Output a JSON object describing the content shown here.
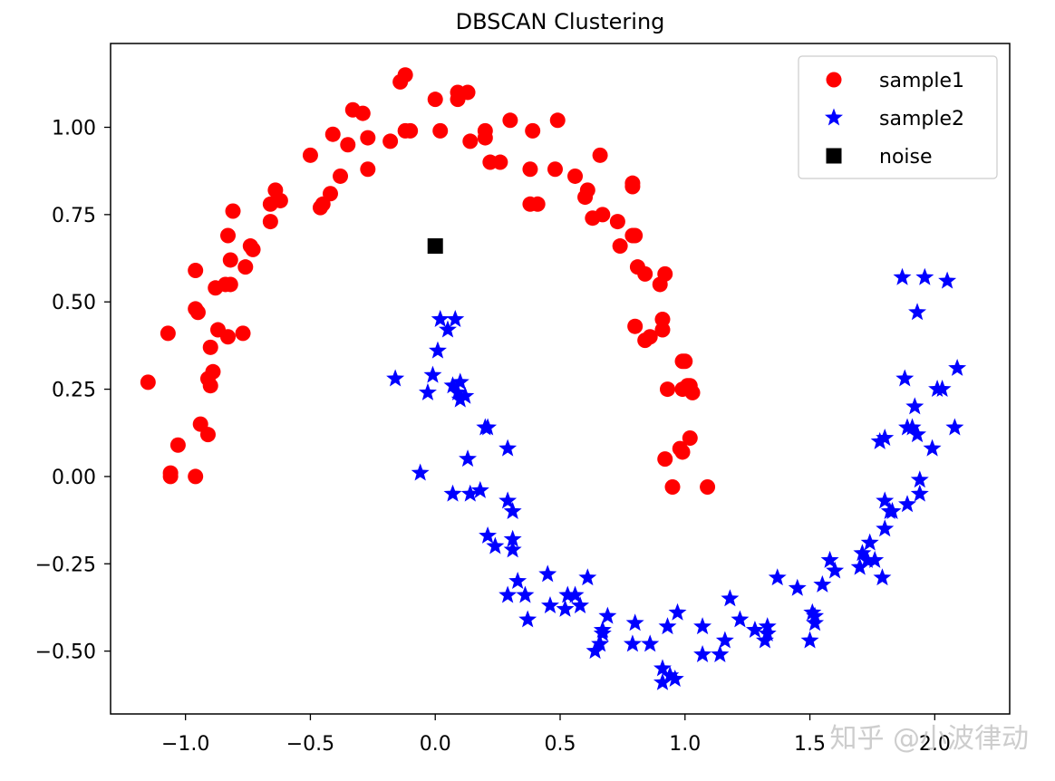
{
  "chart_data": {
    "type": "scatter",
    "title": "DBSCAN Clustering",
    "xlabel": "",
    "ylabel": "",
    "xlim": [
      -1.3,
      2.3
    ],
    "ylim": [
      -0.68,
      1.24
    ],
    "grid": false,
    "legend_position": "top-right",
    "xticks": [
      -1.0,
      -0.5,
      0.0,
      0.5,
      1.0,
      1.5,
      2.0
    ],
    "xtick_labels": [
      "−1.0",
      "−0.5",
      "0.0",
      "0.5",
      "1.0",
      "1.5",
      "2.0"
    ],
    "yticks": [
      -0.5,
      -0.25,
      0.0,
      0.25,
      0.5,
      0.75,
      1.0
    ],
    "ytick_labels": [
      "−0.50",
      "−0.25",
      "0.00",
      "0.25",
      "0.50",
      "0.75",
      "1.00"
    ],
    "series": [
      {
        "name": "sample1",
        "marker": "circle",
        "color": "#ff0000",
        "points": [
          [
            -1.15,
            0.27
          ],
          [
            -1.07,
            0.41
          ],
          [
            -1.06,
            0.01
          ],
          [
            -1.06,
            0.0
          ],
          [
            -1.03,
            0.09
          ],
          [
            -0.96,
            0.59
          ],
          [
            -0.96,
            0.48
          ],
          [
            -0.95,
            0.47
          ],
          [
            -0.96,
            0.0
          ],
          [
            -0.94,
            0.15
          ],
          [
            -0.91,
            0.12
          ],
          [
            -0.91,
            0.28
          ],
          [
            -0.9,
            0.26
          ],
          [
            -0.9,
            0.37
          ],
          [
            -0.89,
            0.3
          ],
          [
            -0.88,
            0.54
          ],
          [
            -0.87,
            0.42
          ],
          [
            -0.84,
            0.55
          ],
          [
            -0.83,
            0.69
          ],
          [
            -0.83,
            0.4
          ],
          [
            -0.82,
            0.55
          ],
          [
            -0.82,
            0.62
          ],
          [
            -0.81,
            0.76
          ],
          [
            -0.77,
            0.41
          ],
          [
            -0.76,
            0.6
          ],
          [
            -0.74,
            0.66
          ],
          [
            -0.73,
            0.65
          ],
          [
            -0.66,
            0.73
          ],
          [
            -0.66,
            0.78
          ],
          [
            -0.64,
            0.82
          ],
          [
            -0.62,
            0.79
          ],
          [
            -0.5,
            0.92
          ],
          [
            -0.46,
            0.77
          ],
          [
            -0.45,
            0.78
          ],
          [
            -0.42,
            0.81
          ],
          [
            -0.41,
            0.98
          ],
          [
            -0.38,
            0.86
          ],
          [
            -0.35,
            0.95
          ],
          [
            -0.33,
            1.05
          ],
          [
            -0.29,
            1.04
          ],
          [
            -0.27,
            0.88
          ],
          [
            -0.27,
            0.97
          ],
          [
            -0.18,
            0.96
          ],
          [
            -0.14,
            1.13
          ],
          [
            -0.12,
            1.15
          ],
          [
            -0.12,
            0.99
          ],
          [
            -0.1,
            0.99
          ],
          [
            0.0,
            1.08
          ],
          [
            0.02,
            0.99
          ],
          [
            0.09,
            1.08
          ],
          [
            0.09,
            1.1
          ],
          [
            0.13,
            1.1
          ],
          [
            0.14,
            0.96
          ],
          [
            0.2,
            0.97
          ],
          [
            0.2,
            0.99
          ],
          [
            0.22,
            0.9
          ],
          [
            0.26,
            0.9
          ],
          [
            0.3,
            1.02
          ],
          [
            0.38,
            0.88
          ],
          [
            0.38,
            0.78
          ],
          [
            0.39,
            0.99
          ],
          [
            0.41,
            0.78
          ],
          [
            0.48,
            0.88
          ],
          [
            0.49,
            1.02
          ],
          [
            0.56,
            0.86
          ],
          [
            0.6,
            0.8
          ],
          [
            0.61,
            0.82
          ],
          [
            0.63,
            0.74
          ],
          [
            0.66,
            0.92
          ],
          [
            0.67,
            0.75
          ],
          [
            0.73,
            0.73
          ],
          [
            0.74,
            0.66
          ],
          [
            0.79,
            0.69
          ],
          [
            0.79,
            0.83
          ],
          [
            0.79,
            0.84
          ],
          [
            0.8,
            0.69
          ],
          [
            0.8,
            0.43
          ],
          [
            0.81,
            0.6
          ],
          [
            0.84,
            0.58
          ],
          [
            0.84,
            0.39
          ],
          [
            0.86,
            0.4
          ],
          [
            0.9,
            0.55
          ],
          [
            0.91,
            0.42
          ],
          [
            0.91,
            0.45
          ],
          [
            0.92,
            0.58
          ],
          [
            0.92,
            0.05
          ],
          [
            0.93,
            0.25
          ],
          [
            0.95,
            -0.03
          ],
          [
            0.98,
            0.08
          ],
          [
            0.99,
            0.07
          ],
          [
            0.99,
            0.33
          ],
          [
            0.99,
            0.25
          ],
          [
            1.0,
            0.33
          ],
          [
            1.01,
            0.26
          ],
          [
            1.02,
            0.26
          ],
          [
            1.03,
            0.24
          ],
          [
            1.02,
            0.11
          ],
          [
            1.09,
            -0.03
          ]
        ]
      },
      {
        "name": "sample2",
        "marker": "star",
        "color": "#0000ff",
        "points": [
          [
            -0.16,
            0.28
          ],
          [
            -0.06,
            0.01
          ],
          [
            -0.03,
            0.24
          ],
          [
            -0.01,
            0.29
          ],
          [
            0.01,
            0.36
          ],
          [
            0.02,
            0.45
          ],
          [
            0.05,
            0.42
          ],
          [
            0.07,
            0.26
          ],
          [
            0.08,
            0.45
          ],
          [
            0.09,
            0.24
          ],
          [
            0.1,
            0.22
          ],
          [
            0.1,
            0.27
          ],
          [
            0.12,
            0.23
          ],
          [
            0.07,
            -0.05
          ],
          [
            0.13,
            0.05
          ],
          [
            0.14,
            -0.05
          ],
          [
            0.18,
            -0.04
          ],
          [
            0.2,
            0.14
          ],
          [
            0.21,
            0.14
          ],
          [
            0.21,
            -0.17
          ],
          [
            0.24,
            -0.2
          ],
          [
            0.29,
            0.08
          ],
          [
            0.29,
            -0.07
          ],
          [
            0.29,
            -0.34
          ],
          [
            0.31,
            -0.1
          ],
          [
            0.31,
            -0.18
          ],
          [
            0.31,
            -0.21
          ],
          [
            0.33,
            -0.3
          ],
          [
            0.36,
            -0.34
          ],
          [
            0.37,
            -0.41
          ],
          [
            0.45,
            -0.28
          ],
          [
            0.46,
            -0.37
          ],
          [
            0.52,
            -0.38
          ],
          [
            0.53,
            -0.34
          ],
          [
            0.56,
            -0.34
          ],
          [
            0.58,
            -0.37
          ],
          [
            0.61,
            -0.29
          ],
          [
            0.64,
            -0.5
          ],
          [
            0.66,
            -0.48
          ],
          [
            0.67,
            -0.45
          ],
          [
            0.67,
            -0.44
          ],
          [
            0.69,
            -0.4
          ],
          [
            0.79,
            -0.48
          ],
          [
            0.8,
            -0.42
          ],
          [
            0.86,
            -0.48
          ],
          [
            0.91,
            -0.55
          ],
          [
            0.91,
            -0.59
          ],
          [
            0.94,
            -0.57
          ],
          [
            0.93,
            -0.43
          ],
          [
            0.96,
            -0.58
          ],
          [
            0.97,
            -0.39
          ],
          [
            1.07,
            -0.43
          ],
          [
            1.07,
            -0.51
          ],
          [
            1.14,
            -0.51
          ],
          [
            1.16,
            -0.47
          ],
          [
            1.18,
            -0.35
          ],
          [
            1.22,
            -0.41
          ],
          [
            1.28,
            -0.44
          ],
          [
            1.32,
            -0.47
          ],
          [
            1.33,
            -0.43
          ],
          [
            1.33,
            -0.45
          ],
          [
            1.37,
            -0.29
          ],
          [
            1.45,
            -0.32
          ],
          [
            1.5,
            -0.47
          ],
          [
            1.51,
            -0.39
          ],
          [
            1.52,
            -0.4
          ],
          [
            1.52,
            -0.42
          ],
          [
            1.55,
            -0.31
          ],
          [
            1.58,
            -0.24
          ],
          [
            1.6,
            -0.27
          ],
          [
            1.7,
            -0.26
          ],
          [
            1.71,
            -0.22
          ],
          [
            1.73,
            -0.24
          ],
          [
            1.74,
            -0.19
          ],
          [
            1.76,
            -0.24
          ],
          [
            1.78,
            0.1
          ],
          [
            1.79,
            -0.29
          ],
          [
            1.8,
            0.11
          ],
          [
            1.8,
            -0.07
          ],
          [
            1.8,
            -0.15
          ],
          [
            1.82,
            -0.1
          ],
          [
            1.83,
            -0.1
          ],
          [
            1.87,
            0.57
          ],
          [
            1.88,
            0.28
          ],
          [
            1.89,
            -0.08
          ],
          [
            1.89,
            0.14
          ],
          [
            1.91,
            0.14
          ],
          [
            1.92,
            0.2
          ],
          [
            1.93,
            0.47
          ],
          [
            1.93,
            0.12
          ],
          [
            1.94,
            -0.01
          ],
          [
            1.94,
            -0.05
          ],
          [
            1.96,
            0.57
          ],
          [
            1.99,
            0.08
          ],
          [
            2.01,
            0.25
          ],
          [
            2.03,
            0.25
          ],
          [
            2.05,
            0.56
          ],
          [
            2.08,
            0.14
          ],
          [
            2.09,
            0.31
          ]
        ]
      },
      {
        "name": "noise",
        "marker": "square",
        "color": "#000000",
        "points": [
          [
            0.0,
            0.66
          ]
        ]
      }
    ]
  },
  "watermark": "知乎 @小波律动"
}
